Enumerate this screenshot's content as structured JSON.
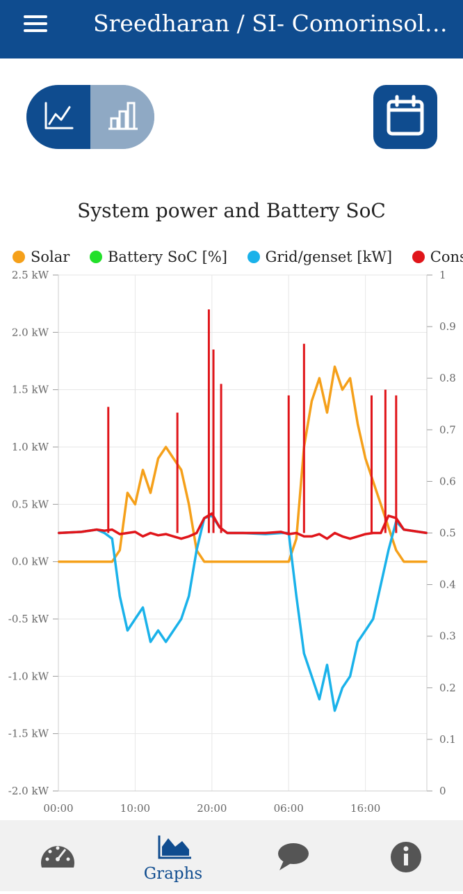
{
  "header": {
    "title": "Sreedharan / SI- Comorinsolar…"
  },
  "view_toggle": {
    "options": [
      "line-chart-icon",
      "bar-chart-icon"
    ],
    "selected": "line-chart-icon"
  },
  "calendar": {
    "icon": "calendar-icon"
  },
  "bottom_nav": {
    "items": [
      {
        "icon": "gauge-icon",
        "label": ""
      },
      {
        "icon": "area-chart-icon",
        "label": "Graphs",
        "active": true
      },
      {
        "icon": "chat-icon",
        "label": ""
      },
      {
        "icon": "info-icon",
        "label": ""
      }
    ]
  },
  "colors": {
    "brand": "#0f4c8f",
    "solar": "#f5a01a",
    "soc": "#22e02a",
    "grid": "#1ab2ea",
    "consumption": "#e0151a"
  },
  "chart_data": {
    "type": "line",
    "title": "System power and Battery SoC",
    "legend": [
      "Solar",
      "Battery SoC [%]",
      "Grid/genset [kW]",
      "Consumption"
    ],
    "legend_visible": [
      "Solar",
      "Battery SoC [%]",
      "Grid/genset [kW]",
      "Consume"
    ],
    "legend_position": "top",
    "grid": true,
    "x_ticks": [
      "00:00",
      "10:00",
      "20:00",
      "06:00",
      "16:00"
    ],
    "y_left": {
      "ticks": [
        "2.5 kW",
        "2.0 kW",
        "1.5 kW",
        "1.0 kW",
        "0.5 kW",
        "0.0 kW",
        "-0.5 kW",
        "-1.0 kW",
        "-1.5 kW",
        "-2.0 kW"
      ],
      "range": [
        -2.0,
        2.5
      ]
    },
    "y_right": {
      "ticks": [
        "1",
        "0.9",
        "0.8",
        "0.7",
        "0.6",
        "0.5",
        "0.4",
        "0.3",
        "0.2",
        "0.1",
        "0"
      ],
      "range": [
        0,
        1
      ]
    },
    "x_hours": [
      0,
      3,
      5,
      6,
      7,
      8,
      9,
      10,
      11,
      12,
      13,
      14,
      15,
      16,
      17,
      18,
      19,
      20,
      21,
      22,
      23,
      24,
      27,
      29,
      30,
      31,
      32,
      33,
      34,
      35,
      36,
      37,
      38,
      39,
      40,
      41,
      42,
      43,
      44,
      45,
      48
    ],
    "series": [
      {
        "name": "Solar",
        "color": "#f5a01a",
        "values": [
          0,
          0,
          0,
          0,
          0,
          0.1,
          0.6,
          0.5,
          0.8,
          0.6,
          0.9,
          1.0,
          0.9,
          0.8,
          0.5,
          0.1,
          0,
          0,
          0,
          0,
          0,
          0,
          0,
          0,
          0,
          0.2,
          1.0,
          1.4,
          1.6,
          1.3,
          1.7,
          1.5,
          1.6,
          1.2,
          0.9,
          0.7,
          0.5,
          0.3,
          0.1,
          0,
          0
        ]
      },
      {
        "name": "Grid/genset [kW]",
        "color": "#1ab2ea",
        "values": [
          0.25,
          0.26,
          0.28,
          0.25,
          0.2,
          -0.3,
          -0.6,
          -0.5,
          -0.4,
          -0.7,
          -0.6,
          -0.7,
          -0.6,
          -0.5,
          -0.3,
          0.1,
          0.38,
          0.4,
          0.3,
          0.25,
          0.25,
          0.25,
          0.24,
          0.25,
          0.25,
          -0.3,
          -0.8,
          -1.0,
          -1.2,
          -0.9,
          -1.3,
          -1.1,
          -1.0,
          -0.7,
          -0.6,
          -0.5,
          -0.2,
          0.1,
          0.35,
          0.28,
          0.25
        ]
      },
      {
        "name": "Consumption",
        "color": "#e0151a",
        "values": [
          0.25,
          0.26,
          0.28,
          0.27,
          0.28,
          0.24,
          0.25,
          0.26,
          0.22,
          0.25,
          0.23,
          0.24,
          0.22,
          0.2,
          0.22,
          0.25,
          0.38,
          0.42,
          0.3,
          0.25,
          0.25,
          0.25,
          0.25,
          0.26,
          0.24,
          0.25,
          0.22,
          0.22,
          0.24,
          0.2,
          0.25,
          0.22,
          0.2,
          0.22,
          0.24,
          0.25,
          0.25,
          0.4,
          0.38,
          0.28,
          0.25
        ]
      },
      {
        "name": "Battery SoC [%]",
        "color": "#22e02a",
        "values": []
      }
    ],
    "spikes_kw": [
      1.35,
      1.3,
      2.2,
      1.85,
      1.55,
      1.45,
      1.9,
      1.45,
      1.5,
      1.45
    ]
  }
}
